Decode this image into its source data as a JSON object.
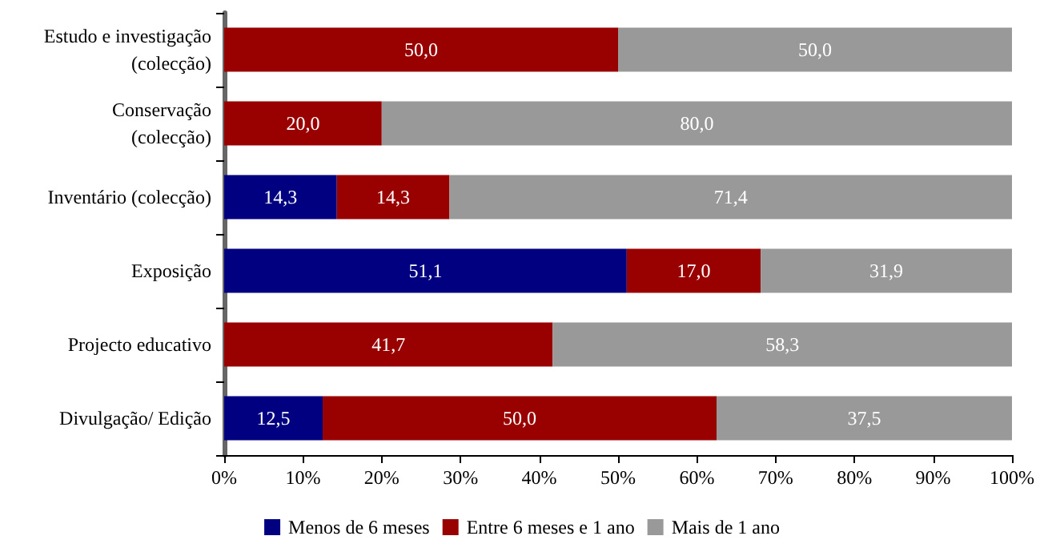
{
  "chart_data": {
    "type": "bar",
    "orientation": "horizontal",
    "stacked": true,
    "categories": [
      "Estudo e investigação\n(colecção)",
      "Conservação\n(colecção)",
      "Inventário (colecção)",
      "Exposição",
      "Projecto educativo",
      "Divulgação/ Edição"
    ],
    "series": [
      {
        "name": "Menos de 6 meses",
        "color": "#000080",
        "values": [
          null,
          null,
          14.3,
          51.1,
          null,
          12.5
        ],
        "value_labels": [
          null,
          null,
          "14,3",
          "51,1",
          null,
          "12,5"
        ]
      },
      {
        "name": "Entre 6 meses e 1 ano",
        "color": "#990000",
        "values": [
          50.0,
          20.0,
          14.3,
          17.0,
          41.7,
          50.0
        ],
        "value_labels": [
          "50,0",
          "20,0",
          "14,3",
          "17,0",
          "41,7",
          "50,0"
        ]
      },
      {
        "name": "Mais de 1 ano",
        "color": "#999999",
        "values": [
          50.0,
          80.0,
          71.4,
          31.9,
          58.3,
          37.5
        ],
        "value_labels": [
          "50,0",
          "80,0",
          "71,4",
          "31,9",
          "58,3",
          "37,5"
        ]
      }
    ],
    "xlim": [
      0,
      100
    ],
    "xticks": [
      {
        "value": 0,
        "label": "0%"
      },
      {
        "value": 10,
        "label": "10%"
      },
      {
        "value": 20,
        "label": "20%"
      },
      {
        "value": 30,
        "label": "30%"
      },
      {
        "value": 40,
        "label": "40%"
      },
      {
        "value": 50,
        "label": "50%"
      },
      {
        "value": 60,
        "label": "60%"
      },
      {
        "value": 70,
        "label": "70%"
      },
      {
        "value": 80,
        "label": "80%"
      },
      {
        "value": 90,
        "label": "90%"
      },
      {
        "value": 100,
        "label": "100%"
      }
    ],
    "legend": "bottom",
    "grid": false
  }
}
